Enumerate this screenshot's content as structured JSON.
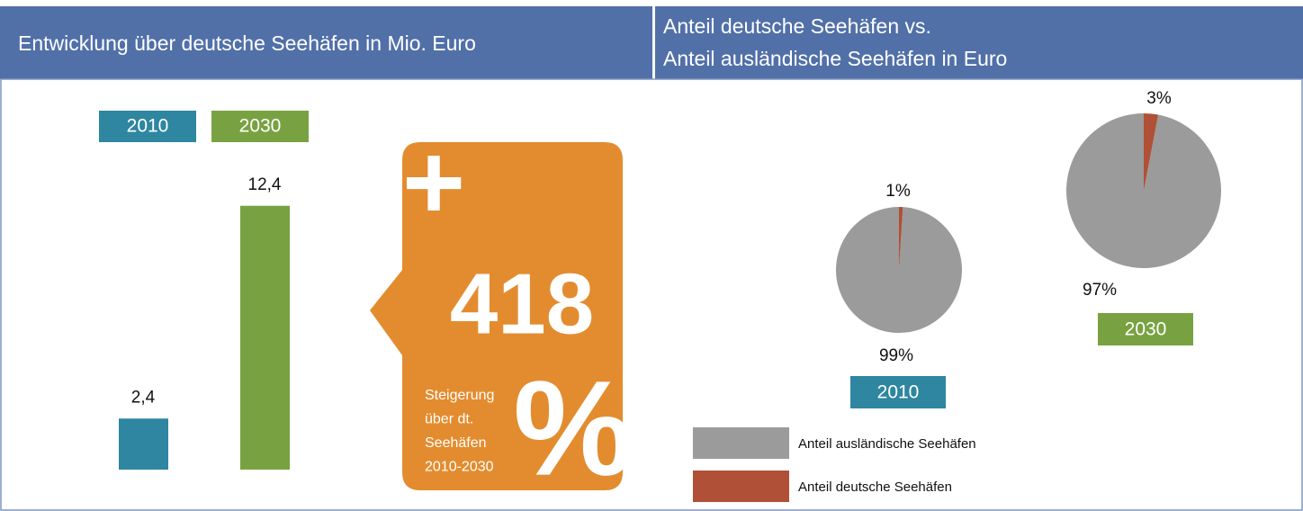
{
  "chart_data": [
    {
      "type": "bar",
      "title": "Entwicklung über deutsche Seehäfen in Mio. Euro",
      "categories": [
        "2010",
        "2030"
      ],
      "values": [
        2.4,
        12.4
      ],
      "value_labels": [
        "2,4",
        "12,4"
      ],
      "colors": [
        "#2e86a0",
        "#78a241"
      ]
    },
    {
      "type": "pie",
      "title": [
        "Anteil deutsche Seehäfen vs.",
        "Anteil ausländische Seehäfen in Euro"
      ],
      "categories": [
        "Anteil ausländische Seehäfen",
        "Anteil deutsche Seehäfen"
      ],
      "colors": [
        "#9b9b9b",
        "#b05037"
      ],
      "series": [
        {
          "name": "2010",
          "color": "#2e86a0",
          "values": [
            99,
            1
          ],
          "value_labels": [
            "99%",
            "1%"
          ]
        },
        {
          "name": "2030",
          "color": "#78a241",
          "values": [
            97,
            3
          ],
          "value_labels": [
            "97%",
            "3%"
          ]
        }
      ]
    }
  ],
  "callout": {
    "sign": "+",
    "value": "418",
    "unit": "%",
    "lines": [
      "Steigerung",
      "über dt.",
      "Seehäfen",
      "2010-2030"
    ]
  }
}
